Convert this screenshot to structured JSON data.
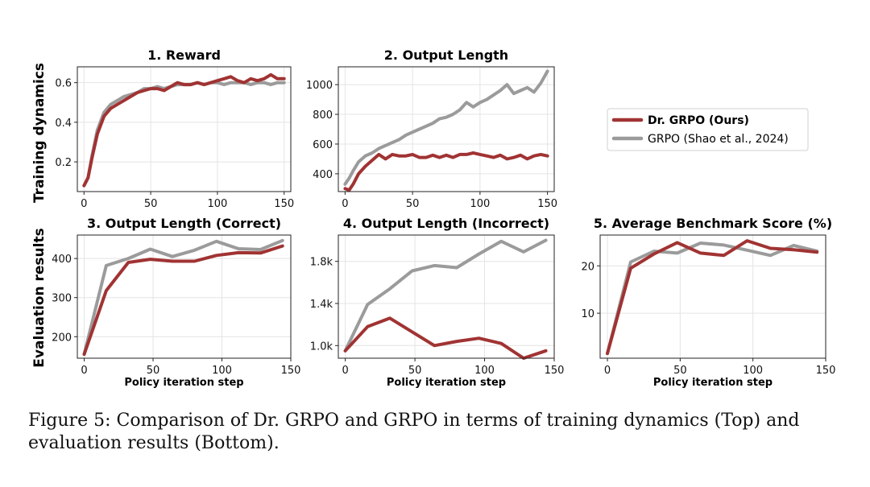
{
  "figure": {
    "caption": "Figure 5: Comparison of Dr. GRPO and GRPO in terms of training dynamics (Top) and evaluation results (Bottom).",
    "row_labels": [
      "Training dynamics",
      "Evaluation results"
    ],
    "colors": {
      "dr_grpo": "#a13333",
      "grpo": "#9b9b9b"
    }
  },
  "legend": {
    "entries": [
      "Dr. GRPO (Ours)",
      "GRPO (Shao et al., 2024)"
    ]
  },
  "chart_data": [
    {
      "type": "line",
      "title": "1. Reward",
      "xlabel": "",
      "ylabel": "Training dynamics",
      "xlim": [
        -5,
        155
      ],
      "ylim": [
        0.05,
        0.68
      ],
      "xticks": [
        0,
        50,
        100,
        150
      ],
      "yticks": [
        0.2,
        0.4,
        0.6
      ],
      "ytick_labels": [
        "0.2",
        "0.4",
        "0.6"
      ],
      "grid": true,
      "series": [
        {
          "name": "Dr. GRPO (Ours)",
          "x": [
            0,
            3,
            6,
            10,
            15,
            20,
            25,
            30,
            35,
            40,
            45,
            50,
            55,
            60,
            65,
            70,
            75,
            80,
            85,
            90,
            95,
            100,
            105,
            110,
            115,
            120,
            125,
            130,
            135,
            140,
            145,
            150
          ],
          "y": [
            0.08,
            0.12,
            0.22,
            0.34,
            0.43,
            0.47,
            0.49,
            0.51,
            0.53,
            0.55,
            0.56,
            0.57,
            0.57,
            0.56,
            0.58,
            0.6,
            0.59,
            0.59,
            0.6,
            0.59,
            0.6,
            0.61,
            0.62,
            0.63,
            0.61,
            0.6,
            0.62,
            0.61,
            0.62,
            0.64,
            0.62,
            0.62
          ]
        },
        {
          "name": "GRPO (Shao et al., 2024)",
          "x": [
            0,
            3,
            6,
            10,
            15,
            20,
            25,
            30,
            35,
            40,
            45,
            50,
            55,
            60,
            65,
            70,
            75,
            80,
            85,
            90,
            95,
            100,
            105,
            110,
            115,
            120,
            125,
            130,
            135,
            140,
            145,
            150
          ],
          "y": [
            0.08,
            0.12,
            0.23,
            0.36,
            0.45,
            0.49,
            0.51,
            0.53,
            0.54,
            0.55,
            0.57,
            0.57,
            0.58,
            0.57,
            0.58,
            0.59,
            0.59,
            0.59,
            0.6,
            0.59,
            0.6,
            0.6,
            0.59,
            0.6,
            0.6,
            0.6,
            0.59,
            0.6,
            0.6,
            0.59,
            0.6,
            0.6
          ]
        }
      ]
    },
    {
      "type": "line",
      "title": "2. Output Length",
      "xlabel": "",
      "ylabel": "",
      "xlim": [
        -5,
        155
      ],
      "ylim": [
        280,
        1120
      ],
      "xticks": [
        0,
        50,
        100,
        150
      ],
      "yticks": [
        400,
        600,
        800,
        1000
      ],
      "ytick_labels": [
        "400",
        "600",
        "800",
        "1000"
      ],
      "grid": true,
      "series": [
        {
          "name": "Dr. GRPO (Ours)",
          "x": [
            0,
            3,
            6,
            10,
            15,
            20,
            25,
            30,
            35,
            40,
            45,
            50,
            55,
            60,
            65,
            70,
            75,
            80,
            85,
            90,
            95,
            100,
            105,
            110,
            115,
            120,
            125,
            130,
            135,
            140,
            145,
            150
          ],
          "y": [
            300,
            290,
            330,
            400,
            450,
            490,
            530,
            500,
            530,
            520,
            520,
            530,
            510,
            510,
            525,
            510,
            525,
            510,
            530,
            530,
            540,
            530,
            520,
            510,
            525,
            500,
            510,
            525,
            500,
            520,
            530,
            520
          ]
        },
        {
          "name": "GRPO (Shao et al., 2024)",
          "x": [
            0,
            3,
            6,
            10,
            15,
            20,
            25,
            30,
            35,
            40,
            45,
            50,
            55,
            60,
            65,
            70,
            75,
            80,
            85,
            90,
            95,
            100,
            105,
            110,
            115,
            120,
            125,
            130,
            135,
            140,
            145,
            150
          ],
          "y": [
            330,
            370,
            420,
            480,
            520,
            540,
            570,
            590,
            610,
            630,
            660,
            680,
            700,
            720,
            740,
            770,
            780,
            800,
            830,
            880,
            850,
            880,
            900,
            930,
            960,
            1000,
            940,
            960,
            980,
            950,
            1010,
            1090
          ]
        }
      ]
    },
    {
      "type": "line",
      "title": "3. Output Length (Correct)",
      "xlabel": "Policy iteration step",
      "ylabel": "Evaluation results",
      "xlim": [
        -5,
        150
      ],
      "ylim": [
        145,
        460
      ],
      "xticks": [
        0,
        50,
        100,
        150
      ],
      "yticks": [
        200,
        300,
        400
      ],
      "ytick_labels": [
        "200",
        "300",
        "400"
      ],
      "grid": true,
      "series": [
        {
          "name": "Dr. GRPO (Ours)",
          "x": [
            0,
            16,
            32,
            48,
            64,
            80,
            96,
            112,
            128,
            144
          ],
          "y": [
            155,
            318,
            390,
            398,
            393,
            393,
            408,
            415,
            414,
            432
          ]
        },
        {
          "name": "GRPO (Shao et al., 2024)",
          "x": [
            0,
            16,
            32,
            48,
            64,
            80,
            96,
            112,
            128,
            144
          ],
          "y": [
            155,
            382,
            400,
            424,
            405,
            421,
            444,
            425,
            423,
            446
          ]
        }
      ]
    },
    {
      "type": "line",
      "title": "4. Output Length (Incorrect)",
      "xlabel": "Policy iteration step",
      "ylabel": "",
      "xlim": [
        -5,
        150
      ],
      "ylim": [
        880,
        2050
      ],
      "xticks": [
        0,
        50,
        100,
        150
      ],
      "yticks": [
        1000,
        1400,
        1800
      ],
      "ytick_labels": [
        "1.0k",
        "1.4k",
        "1.8k"
      ],
      "grid": true,
      "series": [
        {
          "name": "Dr. GRPO (Ours)",
          "x": [
            0,
            16,
            32,
            48,
            64,
            80,
            96,
            112,
            128,
            144
          ],
          "y": [
            950,
            1180,
            1260,
            1130,
            1000,
            1040,
            1070,
            1020,
            880,
            950
          ]
        },
        {
          "name": "GRPO (Shao et al., 2024)",
          "x": [
            0,
            16,
            32,
            48,
            64,
            80,
            96,
            112,
            128,
            144
          ],
          "y": [
            950,
            1390,
            1540,
            1710,
            1760,
            1740,
            1870,
            1990,
            1890,
            2000
          ]
        }
      ]
    },
    {
      "type": "line",
      "title": "5. Average Benchmark Score (%)",
      "xlabel": "Policy iteration step",
      "ylabel": "",
      "xlim": [
        -5,
        150
      ],
      "ylim": [
        0.5,
        26.5
      ],
      "xticks": [
        0,
        50,
        100,
        150
      ],
      "yticks": [
        10,
        20
      ],
      "ytick_labels": [
        "10",
        "20"
      ],
      "grid": true,
      "series": [
        {
          "name": "Dr. GRPO (Ours)",
          "x": [
            0,
            16,
            32,
            48,
            64,
            80,
            96,
            112,
            128,
            144
          ],
          "y": [
            1.5,
            19.5,
            22.5,
            24.9,
            22.7,
            22.2,
            25.3,
            23.7,
            23.4,
            22.9
          ]
        },
        {
          "name": "GRPO (Shao et al., 2024)",
          "x": [
            0,
            16,
            32,
            48,
            64,
            80,
            96,
            112,
            128,
            144
          ],
          "y": [
            1.5,
            20.8,
            23.1,
            22.7,
            24.8,
            24.4,
            23.3,
            22.2,
            24.3,
            23.1
          ]
        }
      ]
    }
  ]
}
